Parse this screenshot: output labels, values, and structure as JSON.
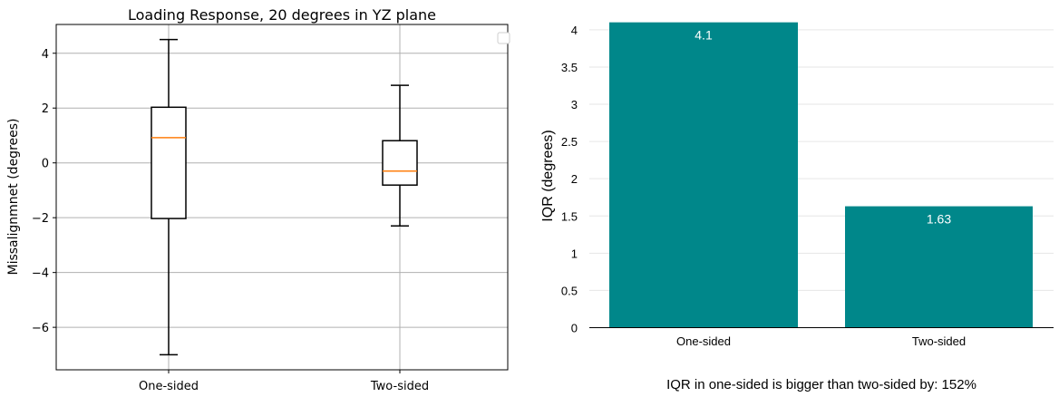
{
  "chart_data": [
    {
      "type": "box",
      "title": "Loading Response, 20 degrees in YZ plane",
      "ylabel": "Missalignmnet (degrees)",
      "xlabel": "",
      "categories": [
        "One-sided",
        "Two-sided"
      ],
      "boxes": [
        {
          "whisker_low": -7.0,
          "q1": -2.03,
          "median": 0.92,
          "q3": 2.03,
          "whisker_high": 4.5
        },
        {
          "whisker_low": -2.3,
          "q1": -0.81,
          "median": -0.3,
          "q3": 0.81,
          "whisker_high": 2.83
        }
      ],
      "ylim": [
        -7.55,
        5.05
      ],
      "yticks": [
        -6,
        -4,
        -2,
        0,
        2,
        4
      ],
      "ytick_labels": [
        "−6",
        "−4",
        "−2",
        "0",
        "2",
        "4"
      ],
      "grid": true,
      "legend": "top-right (empty)",
      "colors": {
        "box": "#000000",
        "median": "#ff7f0e",
        "grid": "#b0b0b0"
      }
    },
    {
      "type": "bar",
      "title": "",
      "ylabel": "IQR (degrees)",
      "xlabel": "",
      "categories": [
        "One-sided",
        "Two-sided"
      ],
      "values": [
        4.1,
        1.63
      ],
      "data_labels": [
        "4.1",
        "1.63"
      ],
      "ylim": [
        0,
        4.12
      ],
      "yticks": [
        0,
        0.5,
        1,
        1.5,
        2,
        2.5,
        3,
        3.5,
        4
      ],
      "ytick_labels": [
        "0",
        "0.5",
        "1",
        "1.5",
        "2",
        "2.5",
        "3",
        "3.5",
        "4"
      ],
      "grid": true,
      "annotation": "IQR in one-sided is bigger than two-sided by: 152%",
      "colors": {
        "bar": "#00878a",
        "grid": "#e6e6e6"
      }
    }
  ]
}
